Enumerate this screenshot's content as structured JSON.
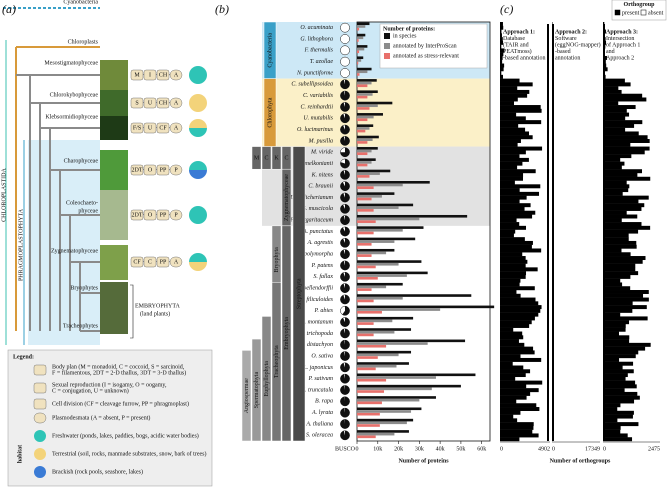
{
  "panel_a": {
    "label": "(a)",
    "taxa": [
      "Cyanobacteria",
      "Chloroplasts",
      "Mesostigmatophyceae",
      "Chlorokybophyceae",
      "Klebsormidiophyceae",
      "Charophyceae",
      "Coleochaeto-",
      "phyceae",
      "Zygnematophyceae",
      "Bryophytes",
      "Tracheophytes"
    ],
    "clades": [
      "CHLOROPLASTIDA",
      "PHRAGMOPLASTOPHYTA",
      "EMBRYOPHYTA",
      "(land plants)"
    ],
    "traits": [
      [
        "M",
        "I",
        "CH",
        "A"
      ],
      [
        "S",
        "U",
        "CH",
        "A"
      ],
      [
        "F/S",
        "U",
        "CF",
        "A"
      ],
      [
        "2DT",
        "O",
        "PP",
        "P"
      ],
      [
        "2DT",
        "O",
        "PP",
        "P"
      ],
      [
        "CF",
        "C",
        "PP",
        "A"
      ]
    ],
    "legend": {
      "title": "Legend:",
      "habitat": "habitat",
      "items": [
        [
          "Body plan (M = monadoid, C = coccoid, S = sarcinoid,",
          "F = filamentous, 2DT = 2-D thallus, 3DT = 3-D thallus)"
        ],
        [
          "Sexual reproduction (I = isogamy, O = oogamy,",
          "C = conjugation, U = unknown)"
        ],
        [
          "Cell division (CF = cleavage furrow, PP = phragmoplast)"
        ],
        [
          "Plasmodesmata (A = absent, P = present)"
        ],
        [
          "Freshwater (ponds, lakes, paddies, bogs, acidic water bodies)"
        ],
        [
          "Terrestrial (soil, rocks, manmade substrates, snow, bark of trees)"
        ],
        [
          "Brackish (rock pools, seashore, lakes)"
        ]
      ]
    }
  },
  "chart_data": {
    "type": "bar",
    "panel_label": "(b)",
    "legend_title": "Number of proteins:",
    "xlabel": "Number of proteins",
    "busco_label": "BUSCO",
    "categories": [
      "O. acuminata",
      "G. lithophora",
      "F. thermalis",
      "T. azollae",
      "N. punctiforme",
      "C. subellipsoidea",
      "C. variabilis",
      "C. reinhardtii",
      "U. mutabilis",
      "O. lucimarinus",
      "M. pusilla",
      "M. viride",
      "C. melkonianii",
      "K. nitens",
      "C. braunii",
      "M. endlicherianum",
      "S. muscicola",
      "P. margaritaceum",
      "A. punctatus",
      "A. agrestis",
      "M. polymorpha",
      "P. patens",
      "S. fallax",
      "S. moellendorffii",
      "A. filiculoides",
      "P. abies",
      "G. montanum",
      "A. trichopoda",
      "B. distachyon",
      "O. sativa",
      "L. japonicus",
      "P. sativum",
      "M. truncatula",
      "B. rapa",
      "A. lyrata",
      "A. thaliana",
      "S. oleracea"
    ],
    "series": [
      {
        "name": "in species",
        "color": "#111111",
        "values": [
          6000,
          4000,
          5000,
          3000,
          7000,
          9500,
          10000,
          17000,
          12500,
          7800,
          10500,
          10000,
          9000,
          16000,
          35000,
          18000,
          27000,
          53000,
          32000,
          28000,
          18000,
          31000,
          34000,
          22000,
          55000,
          66000,
          27000,
          26000,
          52000,
          26000,
          25000,
          57000,
          50000,
          38000,
          31000,
          27000,
          25000
        ]
      },
      {
        "name": "annotated by InterProScan",
        "color": "#8c8c8c",
        "values": [
          4000,
          3000,
          3500,
          2000,
          5000,
          7000,
          7500,
          10000,
          8000,
          6000,
          7500,
          7000,
          7000,
          11000,
          22000,
          12000,
          20000,
          30000,
          22000,
          18000,
          14000,
          20000,
          24000,
          14000,
          22000,
          40000,
          17000,
          18000,
          34000,
          20000,
          19000,
          38000,
          36000,
          30000,
          26000,
          24000,
          18000
        ]
      },
      {
        "name": "annotated as stress-relevant",
        "color": "#e8706b",
        "values": [
          1000,
          800,
          1000,
          600,
          1200,
          5000,
          5000,
          6000,
          5000,
          4000,
          5000,
          5000,
          5000,
          6000,
          8000,
          7000,
          8000,
          9000,
          8000,
          7000,
          7000,
          9000,
          10000,
          7000,
          8000,
          12000,
          8000,
          8000,
          14000,
          10000,
          9000,
          14000,
          13000,
          12000,
          11000,
          11000,
          9000
        ]
      }
    ],
    "busco": [
      null,
      null,
      null,
      null,
      null,
      96,
      97,
      95,
      94,
      93,
      96,
      75,
      80,
      95,
      92,
      94,
      93,
      96,
      92,
      93,
      95,
      96,
      94,
      95,
      94,
      60,
      93,
      96,
      98,
      97,
      95,
      97,
      98,
      99,
      98,
      99,
      96
    ],
    "xlim": [
      0,
      64000
    ],
    "xticks": [
      0,
      {
        "value": 10000,
        "label": "10k"
      },
      {
        "value": 20000,
        "label": "20k"
      },
      {
        "value": 30000,
        "label": "30k"
      },
      {
        "value": 40000,
        "label": "40k"
      },
      {
        "value": 50000,
        "label": "50k"
      },
      {
        "value": 60000,
        "label": "60k"
      }
    ],
    "groups": [
      "Cyanobacteria",
      "Chlorophyta",
      "M",
      "C",
      "K",
      "C",
      "Zygnematophyceae",
      "Streptophyta",
      "Embryophyta",
      "Bryophyta",
      "Tracheophyta",
      "Euphyllophyta",
      "Spermatophyta",
      "Angiospermae"
    ]
  },
  "panel_c": {
    "label": "(c)",
    "legend_title": "Orthogroup",
    "legend": [
      "present",
      "absent"
    ],
    "approaches": [
      [
        "Approach 1:",
        "Database",
        "(TAIR and",
        "PEATmoss)",
        "-based annotation"
      ],
      [
        "Approach 2:",
        "Software",
        "(eggNOG-mapper)",
        "-based",
        "annotation"
      ],
      [
        "Approach 3:",
        "Intersection",
        "of Approach 1",
        "and",
        "Approach 2"
      ]
    ],
    "axes": [
      [
        0,
        4902
      ],
      [
        0,
        17349
      ],
      [
        0,
        2475
      ]
    ],
    "xlabel": "Number of orthogroups"
  }
}
